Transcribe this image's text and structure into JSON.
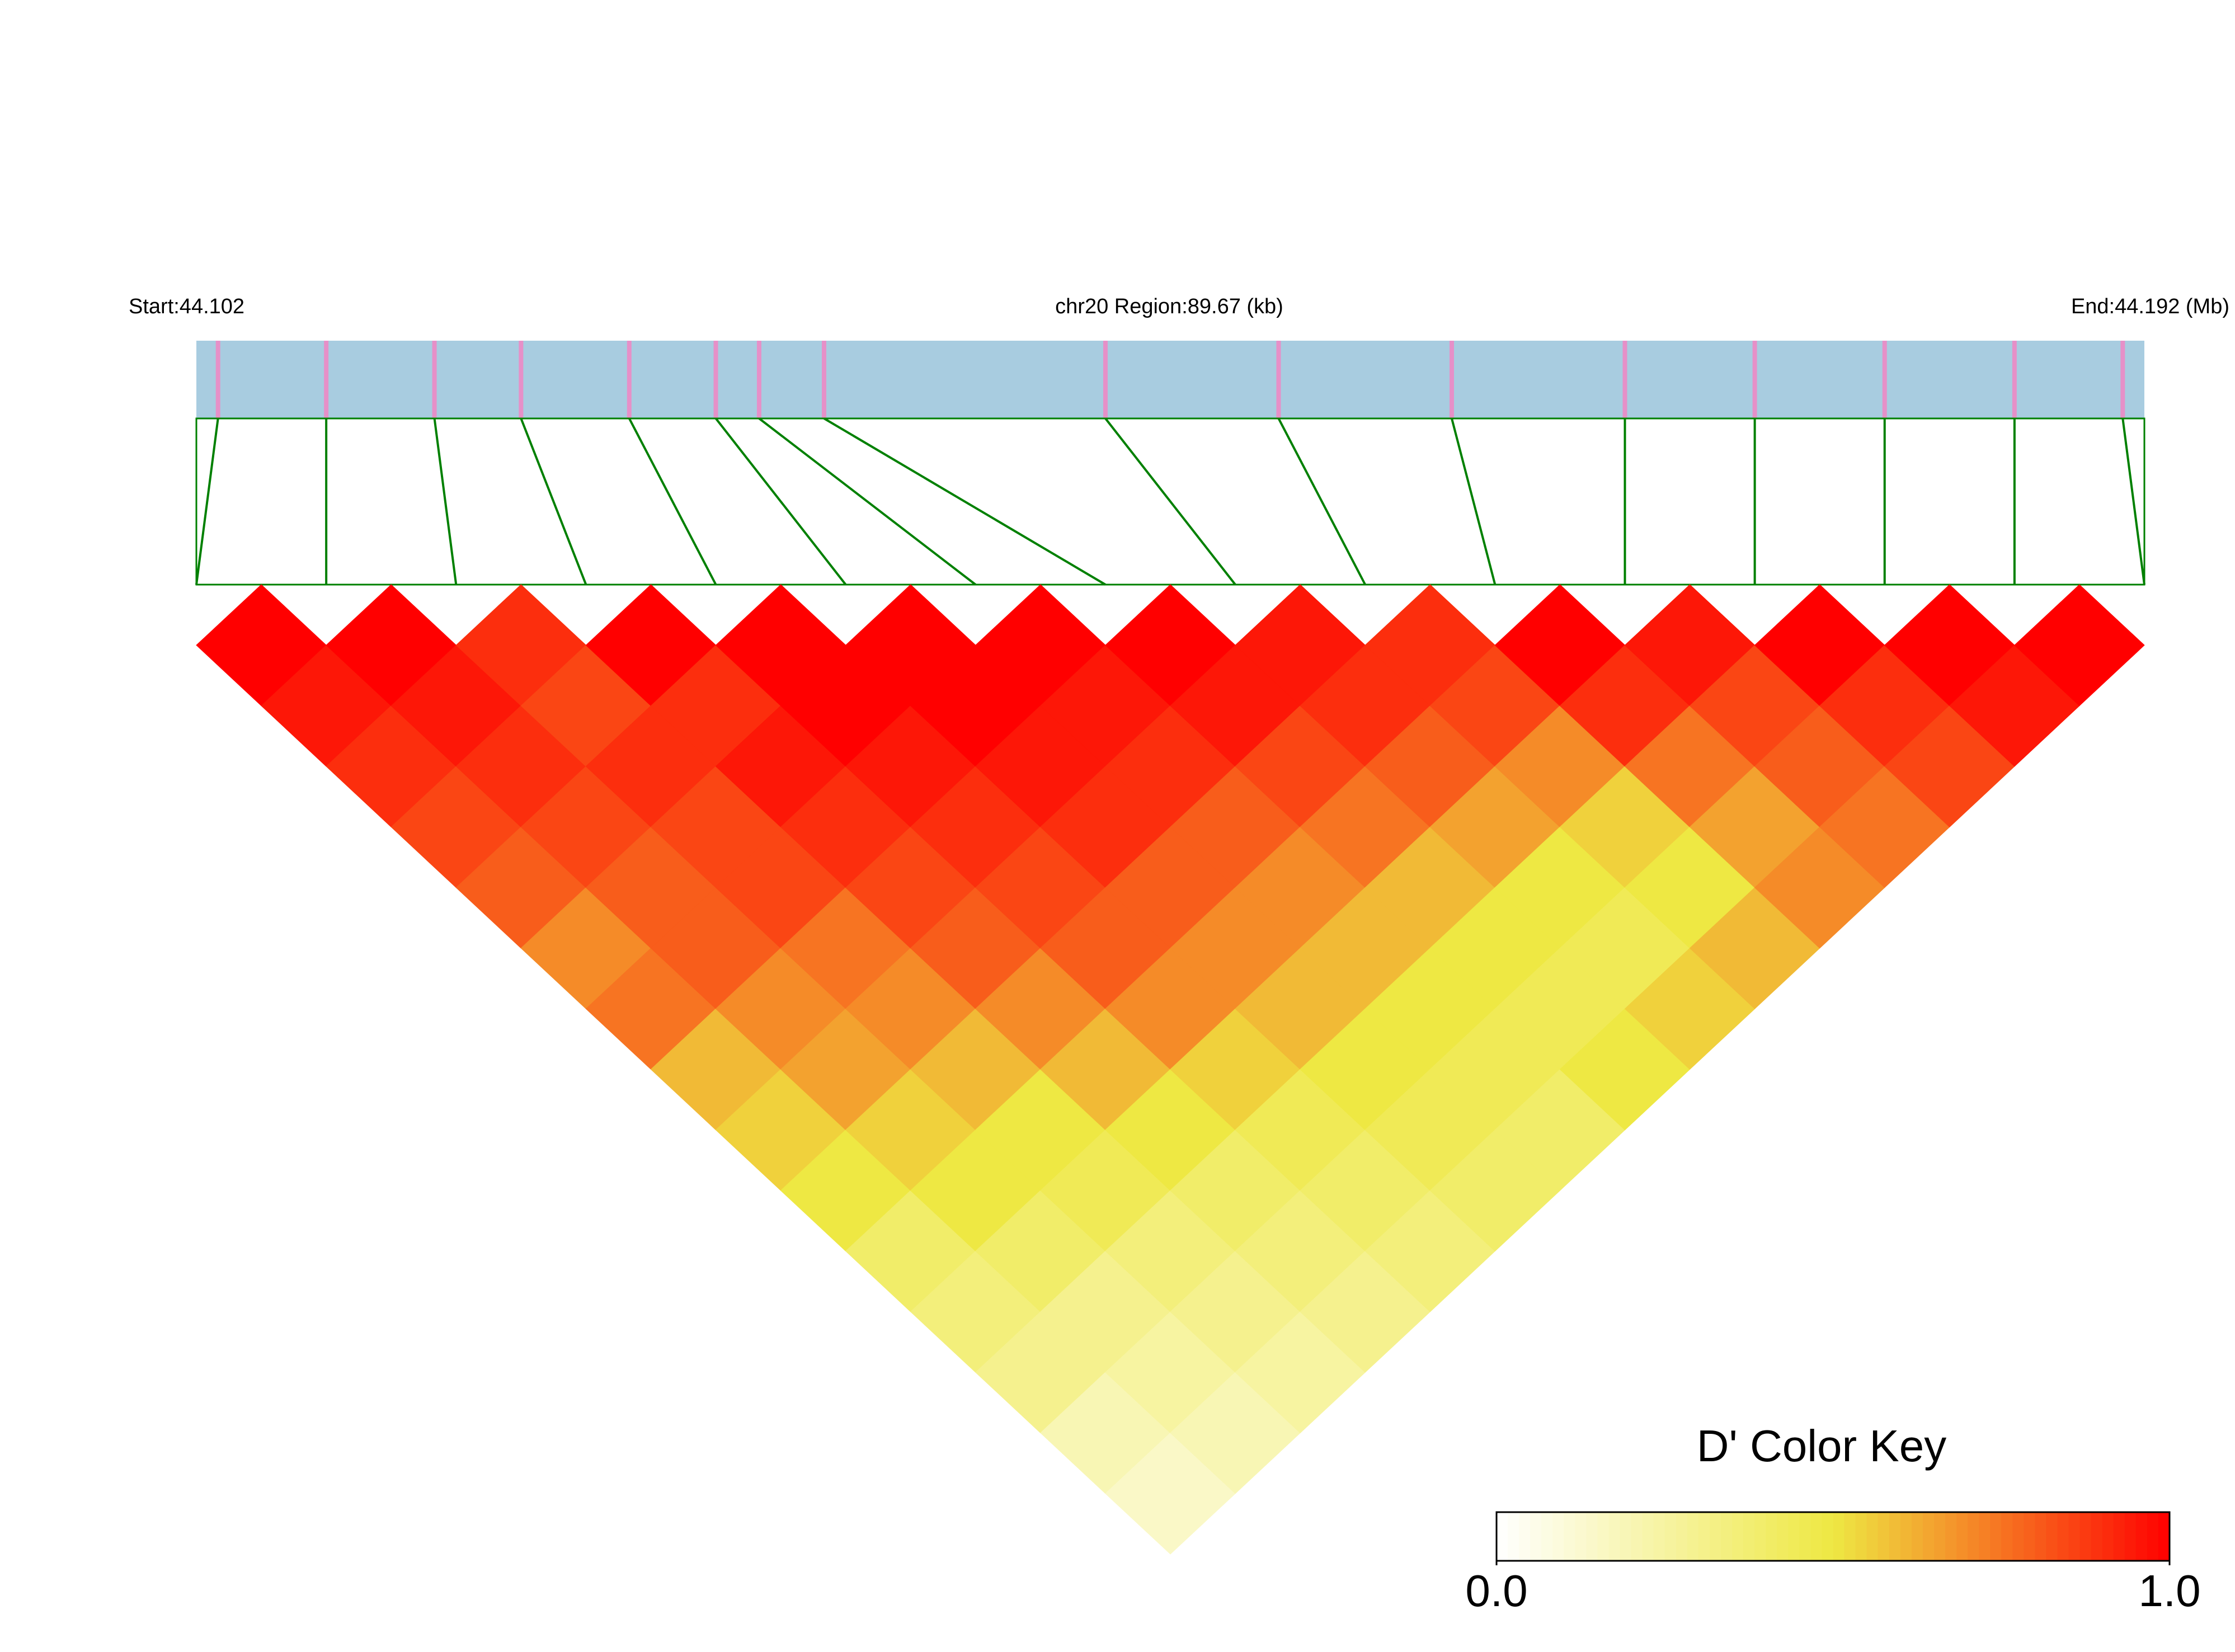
{
  "chart_data": {
    "type": "ld_heatmap",
    "start_label": "Start:44.102",
    "region_label": "chr20 Region:89.67 (kb)",
    "end_label": "End:44.192 (Mb)",
    "xlim": [
      44.102,
      44.192
    ],
    "positions": [
      44.103,
      44.108,
      44.113,
      44.117,
      44.122,
      44.126,
      44.128,
      44.131,
      44.144,
      44.152,
      44.16,
      44.168,
      44.174,
      44.18,
      44.186,
      44.191
    ],
    "values": [
      [
        1,
        0.95,
        0.9,
        0.85,
        0.8,
        0.7,
        0.75,
        0.6,
        0.55,
        0.5,
        0.4,
        0.35,
        0.3,
        0.2,
        0.15
      ],
      [
        1,
        0.95,
        0.9,
        0.85,
        0.8,
        0.8,
        0.7,
        0.65,
        0.55,
        0.5,
        0.4,
        0.3,
        0.25,
        0.2
      ],
      [
        0.9,
        0.85,
        0.9,
        0.85,
        0.85,
        0.75,
        0.7,
        0.6,
        0.5,
        0.45,
        0.35,
        0.3,
        0.25
      ],
      [
        1,
        0.9,
        0.95,
        0.9,
        0.85,
        0.8,
        0.7,
        0.6,
        0.5,
        0.4,
        0.35,
        0.3
      ],
      [
        1,
        1,
        0.95,
        0.9,
        0.85,
        0.8,
        0.7,
        0.55,
        0.45,
        0.4,
        0.35
      ],
      [
        1,
        1,
        0.95,
        0.9,
        0.8,
        0.7,
        0.6,
        0.5,
        0.45,
        0.4
      ],
      [
        1,
        0.95,
        0.9,
        0.8,
        0.7,
        0.6,
        0.5,
        0.45,
        0.4
      ],
      [
        1,
        0.95,
        0.85,
        0.75,
        0.6,
        0.5,
        0.45,
        0.5
      ],
      [
        0.95,
        0.9,
        0.8,
        0.65,
        0.5,
        0.45,
        0.55
      ],
      [
        0.9,
        0.85,
        0.7,
        0.55,
        0.5,
        0.6
      ],
      [
        1,
        0.9,
        0.75,
        0.65,
        0.7
      ],
      [
        0.95,
        0.85,
        0.8,
        0.75
      ],
      [
        1,
        0.9,
        0.85
      ],
      [
        1,
        0.95
      ],
      [
        1
      ]
    ],
    "key_title": "D' Color Key",
    "colors": [
      "#ffffff",
      "#eee843",
      "#ff0000"
    ],
    "colorbar_lim": [
      0,
      1
    ],
    "colorbar_ticks": [
      {
        "value": 0,
        "label": "0.0"
      },
      {
        "value": 1,
        "label": "1.0"
      }
    ],
    "track_color": "#a8cce0",
    "snp_color": "#e690c8",
    "link_color": "#008000"
  }
}
